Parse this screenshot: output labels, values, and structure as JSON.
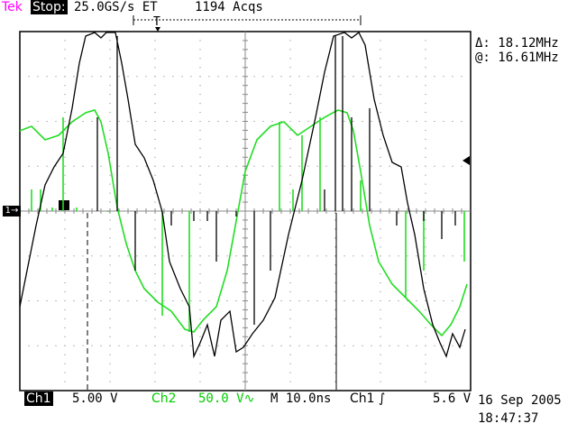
{
  "header": {
    "brand": "Tek",
    "run_state": "Stop:",
    "sample_rate": "25.0GS/s ET",
    "acquisitions": "1194 Acqs"
  },
  "measurements": {
    "delta_freq": "Δ: 18.12MHz",
    "at_freq": "@: 16.61MHz"
  },
  "channels": {
    "ch1_label": "Ch1",
    "ch1_scale": "5.00 V",
    "ch2_label": "Ch2",
    "ch2_scale": "50.0 V∿",
    "ch1_marker": "1→"
  },
  "horizontal": {
    "timebase": "M 10.0ns",
    "trigger_source": "Ch1 ∫",
    "trigger_level": "5.6 V"
  },
  "timestamp": {
    "date": "16 Sep 2005",
    "time": "18:47:37"
  },
  "colors": {
    "ch1_trace": "#000000",
    "ch2_trace": "#00dd00",
    "grid": "#888888",
    "brand": "#ff00ff"
  },
  "icons": {
    "trigger_position": "T-marker",
    "trigger_level": "left-arrow"
  }
}
